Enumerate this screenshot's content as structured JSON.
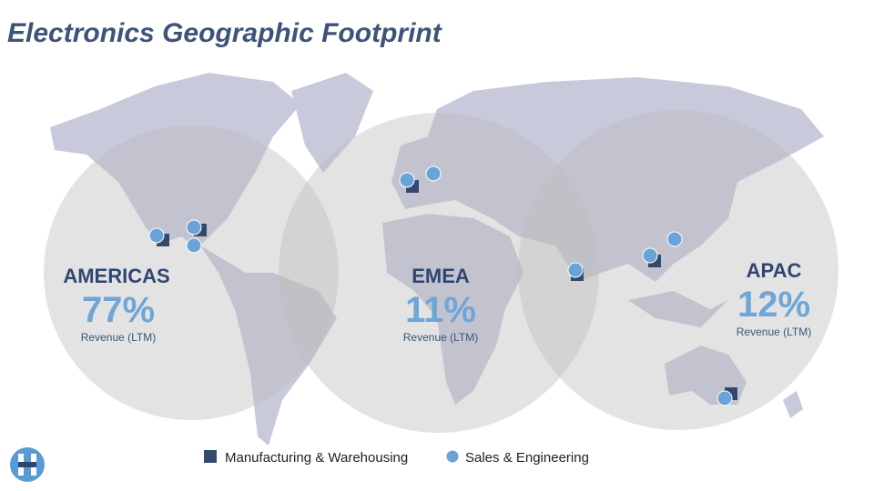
{
  "header": {
    "title": "Electronics Geographic Footprint"
  },
  "regions": [
    {
      "name": "AMERICAS",
      "share": "77%",
      "caption": "Revenue (LTM)"
    },
    {
      "name": "EMEA",
      "share": "11%",
      "caption": "Revenue (LTM)"
    },
    {
      "name": "APAC",
      "share": "12%",
      "caption": "Revenue (LTM)"
    }
  ],
  "legend": {
    "items": [
      "Manufacturing & Warehousing",
      "Sales & Engineering"
    ]
  }
}
